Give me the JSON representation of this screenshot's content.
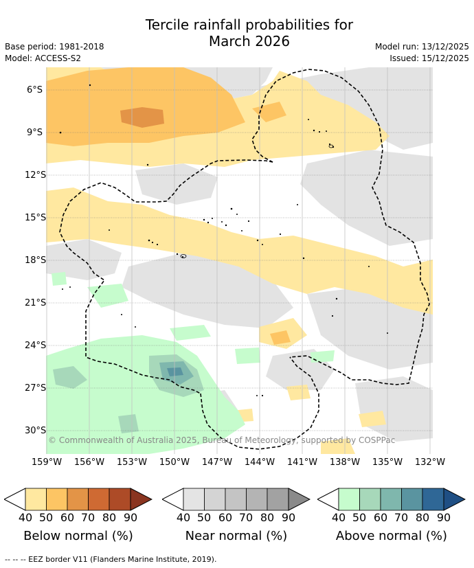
{
  "title": {
    "line1": "Tercile rainfall probabilities for",
    "line2": "March 2026"
  },
  "meta": {
    "base_period": "Base period: 1981-2018",
    "model": "Model: ACCESS-S2",
    "model_run": "Model run: 13/12/2025",
    "issued": "Issued: 15/12/2025"
  },
  "map": {
    "lat_labels": [
      "6°S",
      "9°S",
      "12°S",
      "15°S",
      "18°S",
      "21°S",
      "24°S",
      "27°S",
      "30°S"
    ],
    "lon_labels": [
      "159°W",
      "156°W",
      "153°W",
      "150°W",
      "147°W",
      "144°W",
      "141°W",
      "138°W",
      "135°W",
      "132°W"
    ],
    "copyright": "© Commonwealth of Australia 2025, Bureau of Meteorology, supported by COSPPac"
  },
  "colorbars": [
    {
      "id": "below",
      "label": "Below normal (%)",
      "ticks": [
        "40",
        "50",
        "60",
        "70",
        "80",
        "90"
      ],
      "colors": [
        "#ffe8a0",
        "#fdc564",
        "#e39447",
        "#cf6a33",
        "#ad4b27",
        "#8a3520"
      ]
    },
    {
      "id": "near",
      "label": "Near normal (%)",
      "ticks": [
        "40",
        "50",
        "60",
        "70",
        "80",
        "90"
      ],
      "colors": [
        "#e4e4e4",
        "#d4d4d4",
        "#c4c4c4",
        "#b4b4b4",
        "#a2a2a2",
        "#8a8a8a"
      ]
    },
    {
      "id": "above",
      "label": "Above normal (%)",
      "ticks": [
        "40",
        "50",
        "60",
        "70",
        "80",
        "90"
      ],
      "colors": [
        "#c6fccd",
        "#a7d8ba",
        "#7fb7ad",
        "#5a94a0",
        "#2f6796",
        "#1f4f84"
      ]
    }
  ],
  "footnote": "--  --  -- EEZ border V11 (Flanders Marine Institute, 2019)."
}
